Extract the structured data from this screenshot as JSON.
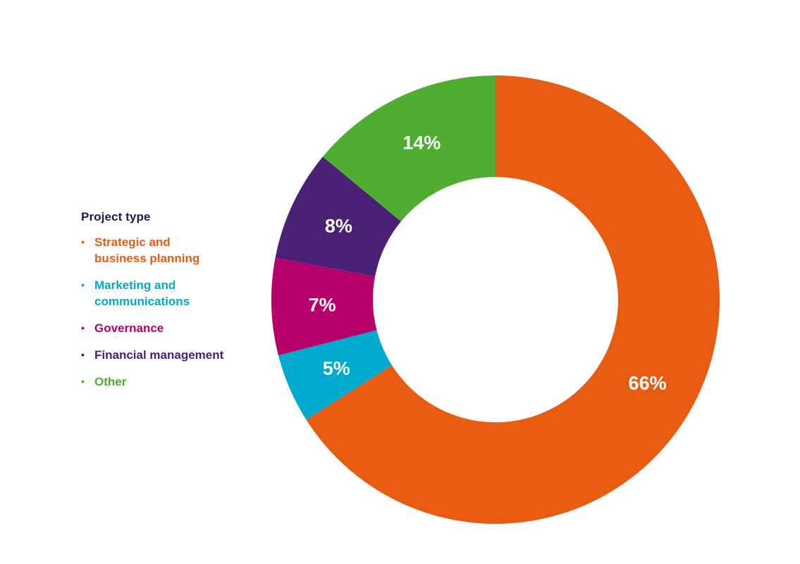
{
  "chart_data": {
    "type": "pie",
    "variant": "donut",
    "legend_title": "Project type",
    "legend_position": "left",
    "slices": [
      {
        "name": "Strategic and\nbusiness planning",
        "value": 66,
        "label": "66%",
        "color": "#e85c12"
      },
      {
        "name": "Marketing and\ncommunications",
        "value": 5,
        "label": "5%",
        "color": "#00a9ce"
      },
      {
        "name": "Governance",
        "value": 7,
        "label": "7%",
        "color": "#b5006c"
      },
      {
        "name": "Financial management",
        "value": 8,
        "label": "8%",
        "color": "#4a2075"
      },
      {
        "name": "Other",
        "value": 14,
        "label": "14%",
        "color": "#4fae32"
      }
    ]
  },
  "legend": {
    "bullet": "•"
  }
}
